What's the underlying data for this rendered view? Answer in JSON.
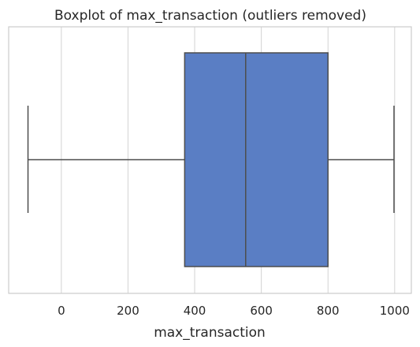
{
  "chart_data": {
    "type": "boxplot",
    "title": "Boxplot of max_transaction (outliers removed)",
    "xlabel": "max_transaction",
    "ylabel": "",
    "xlim": [
      -158,
      1050
    ],
    "xticks": [
      0,
      200,
      400,
      600,
      800,
      1000
    ],
    "grid": true,
    "series": [
      {
        "whisker_low": -100,
        "q1": 370,
        "median": 553,
        "q3": 800,
        "whisker_high": 998
      }
    ],
    "colors": {
      "box_fill": "#5A7EC4",
      "lines": "#4d4d4d",
      "grid": "#d3d3d3",
      "frame": "#cccccc"
    }
  }
}
